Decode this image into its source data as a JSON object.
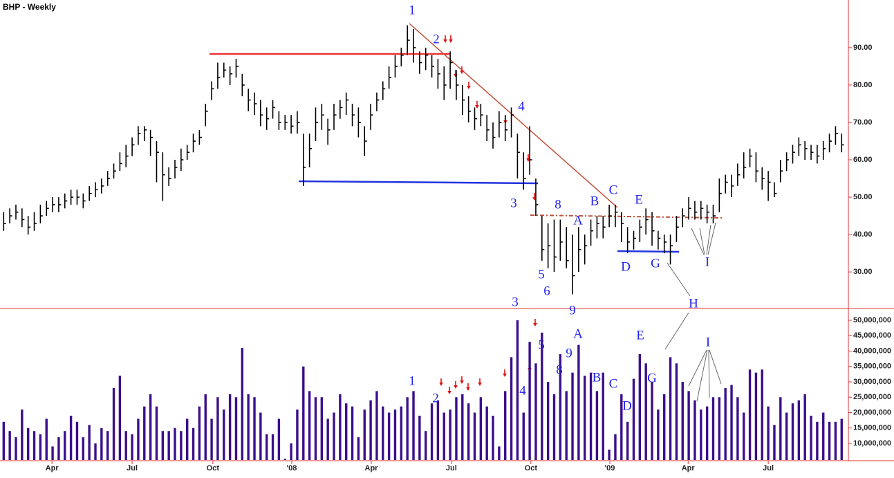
{
  "chart_data": [
    {
      "type": "ohlc",
      "title": "BHP - Weekly",
      "color": "#000000",
      "x": [
        0,
        1,
        2,
        3,
        4,
        5,
        6,
        7,
        8,
        9,
        10,
        11,
        12,
        13,
        14,
        15,
        16,
        17,
        18,
        19,
        20,
        21,
        22,
        23,
        24,
        25,
        26,
        27,
        28,
        29,
        30,
        31,
        32,
        33,
        34,
        35,
        36,
        37,
        38,
        39,
        40,
        41,
        42,
        43,
        44,
        45,
        46,
        47,
        48,
        49,
        50,
        51,
        52,
        53,
        54,
        55,
        56,
        57,
        58,
        59,
        60,
        61,
        62,
        63,
        64,
        65,
        66,
        67,
        68,
        69,
        70,
        71,
        72,
        73,
        74,
        75,
        76,
        77,
        78,
        79,
        80,
        81,
        82,
        83,
        84,
        85,
        86,
        87,
        88,
        89,
        90,
        91,
        92,
        93,
        94,
        95,
        96,
        97,
        98,
        99,
        100,
        101,
        102,
        103,
        104,
        105,
        106,
        107,
        108,
        109,
        110,
        111,
        112,
        113,
        114,
        115,
        116,
        117,
        118,
        119,
        120,
        121,
        122,
        123,
        124,
        125,
        126,
        127,
        128,
        129,
        130,
        131,
        132,
        133,
        134,
        135,
        136,
        137
      ],
      "high": [
        46,
        47,
        48,
        47,
        45,
        46,
        48,
        49,
        50,
        50,
        51,
        52,
        52,
        51,
        53,
        54,
        55,
        57,
        59,
        62,
        64,
        66,
        69,
        69,
        68,
        65,
        62,
        58,
        60,
        63,
        64,
        67,
        68,
        75,
        81,
        86,
        86,
        85,
        87,
        83,
        79,
        78,
        76,
        74,
        76,
        73,
        72,
        72,
        73,
        67,
        67,
        74,
        75,
        71,
        75,
        76,
        78,
        75,
        74,
        69,
        75,
        78,
        81,
        85,
        88,
        90,
        96,
        95,
        89,
        90,
        88,
        87,
        85,
        89,
        84,
        80,
        77,
        74,
        75,
        72,
        70,
        73,
        72,
        74,
        67,
        62,
        69,
        55,
        45,
        43,
        44,
        44,
        42,
        40,
        42,
        40,
        44,
        45,
        45,
        48,
        48,
        46,
        42,
        41,
        44,
        47,
        46,
        41,
        40,
        40,
        45,
        47,
        50,
        49,
        49,
        48,
        48,
        55,
        56,
        56,
        59,
        62,
        63,
        62,
        58,
        57,
        54,
        60,
        62,
        64,
        66,
        65,
        64,
        64,
        65,
        67,
        69,
        67
      ],
      "low": [
        41,
        43,
        44,
        42,
        40,
        41,
        43,
        45,
        46,
        46,
        47,
        48,
        48,
        47,
        49,
        50,
        51,
        53,
        55,
        57,
        58,
        61,
        64,
        65,
        61,
        54,
        49,
        53,
        55,
        57,
        60,
        62,
        64,
        69,
        76,
        79,
        82,
        80,
        82,
        77,
        73,
        72,
        69,
        68,
        71,
        68,
        68,
        67,
        67,
        53,
        58,
        65,
        68,
        64,
        68,
        71,
        72,
        69,
        66,
        61,
        68,
        73,
        76,
        79,
        82,
        85,
        88,
        86,
        83,
        84,
        82,
        79,
        76,
        79,
        76,
        72,
        70,
        68,
        69,
        65,
        63,
        66,
        65,
        66,
        55,
        52,
        56,
        45,
        33,
        31,
        30,
        33,
        31,
        24,
        30,
        32,
        37,
        39,
        39,
        42,
        42,
        38,
        35,
        36,
        38,
        40,
        37,
        36,
        35,
        32,
        38,
        42,
        44,
        44,
        44,
        43,
        43,
        46,
        51,
        50,
        53,
        55,
        58,
        54,
        52,
        49,
        50,
        54,
        57,
        59,
        61,
        60,
        60,
        59,
        60,
        62,
        64,
        62
      ],
      "close": [
        43,
        45,
        46,
        44,
        42,
        43,
        45,
        47,
        48,
        48,
        49,
        50,
        50,
        49,
        51,
        52,
        53,
        55,
        57,
        59,
        61,
        64,
        67,
        68,
        66,
        62,
        56,
        55,
        58,
        60,
        62,
        65,
        66,
        73,
        79,
        82,
        84,
        83,
        85,
        80,
        76,
        75,
        72,
        71,
        74,
        70,
        70,
        69,
        70,
        58,
        63,
        70,
        72,
        68,
        72,
        74,
        76,
        72,
        70,
        65,
        72,
        76,
        79,
        82,
        85,
        88,
        92,
        90,
        86,
        88,
        85,
        83,
        80,
        86,
        80,
        76,
        73,
        71,
        72,
        68,
        66,
        70,
        68,
        72,
        62,
        55,
        60,
        48,
        36,
        37,
        34,
        38,
        33,
        29,
        36,
        37,
        41,
        43,
        42,
        45,
        46,
        43,
        38,
        39,
        42,
        44,
        41,
        39,
        38,
        37,
        42,
        45,
        47,
        46,
        47,
        46,
        45,
        51,
        54,
        53,
        56,
        58,
        61,
        57,
        55,
        54,
        51,
        57,
        60,
        62,
        64,
        63,
        62,
        61,
        63,
        65,
        67,
        64
      ],
      "ylim": [
        20.4,
        102.2
      ],
      "yticks": [
        {
          "value": 30,
          "label": "30.00"
        },
        {
          "value": 40,
          "label": "40.00"
        },
        {
          "value": 50,
          "label": "50.00"
        },
        {
          "value": 60,
          "label": "60.00"
        },
        {
          "value": 70,
          "label": "70.00"
        },
        {
          "value": 80,
          "label": "80.00"
        },
        {
          "value": 90,
          "label": "90.00"
        }
      ],
      "xlim": [
        -0.6,
        138.1
      ],
      "xticks": [
        {
          "value": 7.9,
          "label": "Apr"
        },
        {
          "value": 21,
          "label": "Jul"
        },
        {
          "value": 34.2,
          "label": "Oct"
        },
        {
          "value": 47.1,
          "label": "'08"
        },
        {
          "value": 60.1,
          "label": "Apr"
        },
        {
          "value": 73.2,
          "label": "Jul"
        },
        {
          "value": 86.2,
          "label": "Oct"
        },
        {
          "value": 99.1,
          "label": "'09"
        },
        {
          "value": 111.9,
          "label": "Apr"
        },
        {
          "value": 125,
          "label": "Jul"
        }
      ],
      "annotations": [
        "1",
        "2",
        "4",
        "3",
        "8",
        "A",
        "B",
        "C",
        "E",
        "5",
        "6",
        "9",
        "D",
        "G",
        "I",
        "H"
      ]
    },
    {
      "type": "bar",
      "color": "#3b0f8c",
      "x": [
        0,
        1,
        2,
        3,
        4,
        5,
        6,
        7,
        8,
        9,
        10,
        11,
        12,
        13,
        14,
        15,
        16,
        17,
        18,
        19,
        20,
        21,
        22,
        23,
        24,
        25,
        26,
        27,
        28,
        29,
        30,
        31,
        32,
        33,
        34,
        35,
        36,
        37,
        38,
        39,
        40,
        41,
        42,
        43,
        44,
        45,
        46,
        47,
        48,
        49,
        50,
        51,
        52,
        53,
        54,
        55,
        56,
        57,
        58,
        59,
        60,
        61,
        62,
        63,
        64,
        65,
        66,
        67,
        68,
        69,
        70,
        71,
        72,
        73,
        74,
        75,
        76,
        77,
        78,
        79,
        80,
        81,
        82,
        83,
        84,
        85,
        86,
        87,
        88,
        89,
        90,
        91,
        92,
        93,
        94,
        95,
        96,
        97,
        98,
        99,
        100,
        101,
        102,
        103,
        104,
        105,
        106,
        107,
        108,
        109,
        110,
        111,
        112,
        113,
        114,
        115,
        116,
        117,
        118,
        119,
        120,
        121,
        122,
        123,
        124,
        125,
        126,
        127,
        128,
        129,
        130,
        131,
        132,
        133,
        134,
        135,
        136,
        137
      ],
      "values": [
        17000000.0,
        14000000.0,
        12000000.0,
        21000000.0,
        15000000.0,
        14000000.0,
        13000000.0,
        18000000.0,
        9000000.0,
        12000000.0,
        14000000.0,
        19000000.0,
        17000000.0,
        12000000.0,
        16000000.0,
        10000000.0,
        15000000.0,
        14000000.0,
        28000000.0,
        32000000.0,
        14000000.0,
        13000000.0,
        18000000.0,
        22000000.0,
        26000000.0,
        22000000.0,
        14000000.0,
        14000000.0,
        15000000.0,
        14000000.0,
        18000000.0,
        15000000.0,
        22000000.0,
        26000000.0,
        18000000.0,
        25000000.0,
        21000000.0,
        26000000.0,
        25000000.0,
        41000000.0,
        26000000.0,
        25000000.0,
        20000000.0,
        13000000.0,
        13000000.0,
        18000000.0,
        5000000.0,
        10000000.0,
        21000000.0,
        35000000.0,
        27000000.0,
        25000000.0,
        25000000.0,
        18000000.0,
        20000000.0,
        26000000.0,
        23000000.0,
        22000000.0,
        12000000.0,
        21000000.0,
        24000000.0,
        27000000.0,
        22000000.0,
        20000000.0,
        21000000.0,
        22000000.0,
        25000000.0,
        27000000.0,
        19000000.0,
        14000000.0,
        23000000.0,
        24000000.0,
        20000000.0,
        21000000.0,
        25000000.0,
        26000000.0,
        23000000.0,
        20000000.0,
        25000000.0,
        22000000.0,
        19000000.0,
        9000000.0,
        27000000.0,
        38000000.0,
        50000000.0,
        20000000.0,
        43000000.0,
        36000000.0,
        46000000.0,
        30000000.0,
        26000000.0,
        39000000.0,
        27000000.0,
        33000000.0,
        42000000.0,
        32000000.0,
        33000000.0,
        27000000.0,
        33000000.0,
        8000000.0,
        13000000.0,
        26000000.0,
        17000000.0,
        31000000.0,
        39000000.0,
        36000000.0,
        30000000.0,
        21000000.0,
        26000000.0,
        38000000.0,
        36000000.0,
        30000000.0,
        27000000.0,
        24000000.0,
        21000000.0,
        22000000.0,
        25000000.0,
        25000000.0,
        28000000.0,
        29000000.0,
        25000000.0,
        20000000.0,
        34000000.0,
        33000000.0,
        34000000.0,
        22000000.0,
        16000000.0,
        25000000.0,
        20000000.0,
        23000000.0,
        24000000.0,
        26000000.0,
        19000000.0,
        17000000.0,
        20000000.0,
        17000000.0,
        17000000.0,
        18000000.0
      ],
      "ylim": [
        4600000.0,
        53600000.0
      ],
      "yticks": [
        {
          "value": 10000000,
          "label": "10,000,000"
        },
        {
          "value": 15000000,
          "label": "15,000,000"
        },
        {
          "value": 20000000,
          "label": "20,000,000"
        },
        {
          "value": 25000000,
          "label": "25,000,000"
        },
        {
          "value": 30000000,
          "label": "30,000,000"
        },
        {
          "value": 35000000,
          "label": "35,000,000"
        },
        {
          "value": 40000000,
          "label": "40,000,000"
        },
        {
          "value": 45000000,
          "label": "45,000,000"
        },
        {
          "value": 50000000,
          "label": "50,000,000"
        }
      ],
      "annotations": [
        "3",
        "5",
        "A",
        "9",
        "8",
        "B",
        "E",
        "C",
        "G",
        "D",
        "I",
        "1",
        "2",
        "4"
      ]
    }
  ]
}
